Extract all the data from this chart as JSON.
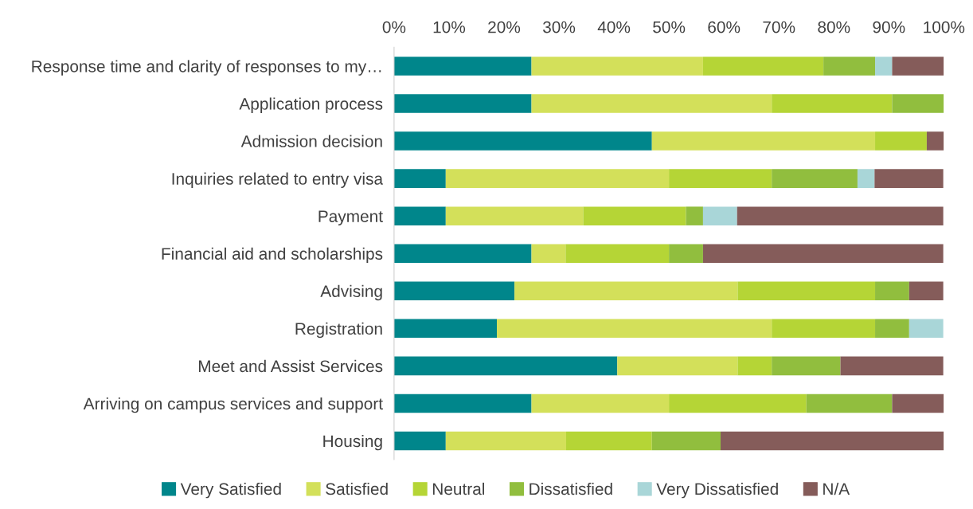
{
  "chart_data": {
    "type": "bar",
    "orientation": "horizontal",
    "stacked": true,
    "categories": [
      "Response time and clarity of responses to my…",
      "Application process",
      "Admission decision",
      "Inquiries related to entry visa",
      "Payment",
      "Financial aid and scholarships",
      "Advising",
      "Registration",
      "Meet and Assist Services",
      "Arriving on campus services and support",
      "Housing"
    ],
    "series": [
      {
        "name": "Very Satisfied",
        "color": "#00868b",
        "values": [
          25,
          25,
          46.9,
          9.4,
          9.4,
          25,
          21.9,
          18.7,
          40.6,
          25,
          9.4
        ]
      },
      {
        "name": "Satisfied",
        "color": "#d3e05a",
        "values": [
          31.2,
          43.7,
          40.6,
          40.6,
          25,
          6.2,
          40.6,
          50,
          21.9,
          25,
          21.9
        ]
      },
      {
        "name": "Neutral",
        "color": "#b5d536",
        "values": [
          21.9,
          21.9,
          9.4,
          18.7,
          18.7,
          18.8,
          25,
          18.8,
          6.2,
          25,
          15.6
        ]
      },
      {
        "name": "Dissatisfied",
        "color": "#91be3e",
        "values": [
          9.4,
          9.4,
          0,
          15.6,
          3.1,
          6.2,
          6.2,
          6.2,
          12.5,
          15.6,
          12.5
        ]
      },
      {
        "name": "Very Dissatisfied",
        "color": "#a9d6d8",
        "values": [
          3.1,
          0,
          0,
          3.1,
          6.2,
          0,
          0,
          6.2,
          0,
          0,
          0
        ]
      },
      {
        "name": "N/A",
        "color": "#855c5a",
        "values": [
          9.4,
          0,
          3.1,
          12.5,
          37.5,
          43.7,
          6.2,
          0,
          18.7,
          9.4,
          40.6
        ]
      }
    ],
    "xlim": [
      0,
      100
    ],
    "xticks": [
      {
        "value": 0,
        "label": "0%"
      },
      {
        "value": 10,
        "label": "10%"
      },
      {
        "value": 20,
        "label": "20%"
      },
      {
        "value": 30,
        "label": "30%"
      },
      {
        "value": 40,
        "label": "40%"
      },
      {
        "value": 50,
        "label": "50%"
      },
      {
        "value": 60,
        "label": "60%"
      },
      {
        "value": 70,
        "label": "70%"
      },
      {
        "value": 80,
        "label": "80%"
      },
      {
        "value": 90,
        "label": "90%"
      },
      {
        "value": 100,
        "label": "100%"
      }
    ],
    "grid": false,
    "legend": "bottom"
  }
}
